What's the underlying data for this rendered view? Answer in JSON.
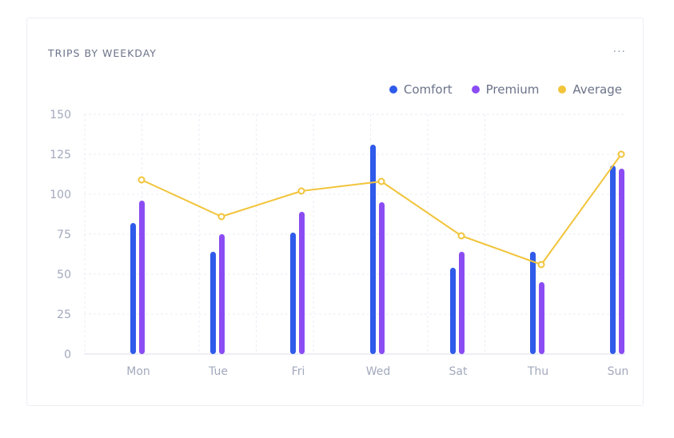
{
  "colors": {
    "comfort": "#2f5bea",
    "premium": "#8b4cf3",
    "average": "#f1c43a",
    "grid": "#ebedf4",
    "axis": "#d9dcec"
  },
  "card": {
    "title": "TRIPS BY WEEKDAY",
    "menu_label": "···"
  },
  "legend": [
    {
      "label": "Comfort",
      "color": "#2f5bea"
    },
    {
      "label": "Premium",
      "color": "#8b4cf3"
    },
    {
      "label": "Average",
      "color": "#f1c43a"
    }
  ],
  "chart_data": {
    "type": "bar",
    "title": "TRIPS BY WEEKDAY",
    "categories": [
      "Mon",
      "Tue",
      "Fri",
      "Wed",
      "Sat",
      "Thu",
      "Sun"
    ],
    "series": [
      {
        "name": "Comfort",
        "type": "bar",
        "values": [
          82,
          64,
          76,
          131,
          54,
          64,
          118
        ]
      },
      {
        "name": "Premium",
        "type": "bar",
        "values": [
          96,
          75,
          89,
          95,
          64,
          45,
          116
        ]
      },
      {
        "name": "Average",
        "type": "line",
        "values": [
          109,
          86,
          102,
          108,
          74,
          56,
          125
        ]
      }
    ],
    "yticks": [
      0,
      25,
      50,
      75,
      100,
      125,
      150
    ],
    "ylim": [
      0,
      150
    ],
    "xlabel": "",
    "ylabel": "",
    "grid": true,
    "legend_position": "top-right"
  }
}
